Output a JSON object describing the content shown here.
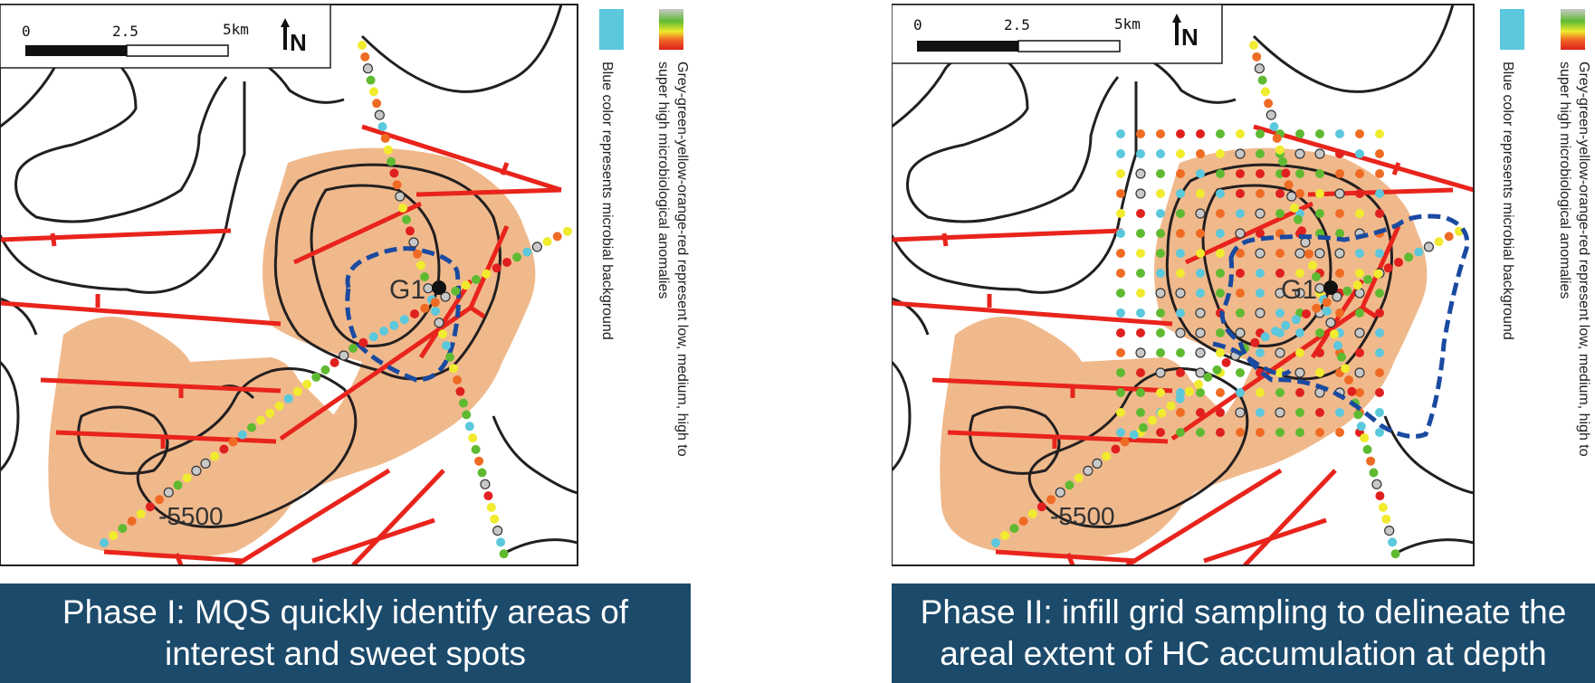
{
  "panels": [
    {
      "well_label": "G1",
      "contour_label": "-5500",
      "scale": {
        "tick0": "0",
        "tick1": "2.5",
        "tick2": "5km"
      },
      "north": "N",
      "legend_blue": "Blue color represents microbial background",
      "legend_gradient": "Grey-green-yellow-orange-red represent low, medium, high to super high microbiological anomalies",
      "caption_line1": "Phase I: MQS quickly identify areas of",
      "caption_line2": "interest and sweet spots"
    },
    {
      "well_label": "G1",
      "contour_label": "-5500",
      "scale": {
        "tick0": "0",
        "tick1": "2.5",
        "tick2": "5km"
      },
      "north": "N",
      "legend_blue": "Blue color represents microbial background",
      "legend_gradient": "Grey-green-yellow-orange-red represent low, medium, high to super high microbiological anomalies",
      "caption_line1": "Phase II: infill grid sampling to delineate the",
      "caption_line2": "areal extent of HC accumulation at depth"
    }
  ],
  "colors": {
    "anomaly_area": "#f0b98c",
    "fault": "#e8241c",
    "contour": "#231f20",
    "outline": "#1a4aa0",
    "background_blue": "#5bc8dc",
    "caption_bg": "#1b4a6b",
    "dot_grey": "#c8c8c8",
    "dot_green": "#5fba32",
    "dot_yellow": "#f0eb2e",
    "dot_orange": "#ef6b24",
    "dot_red": "#e0201e"
  }
}
